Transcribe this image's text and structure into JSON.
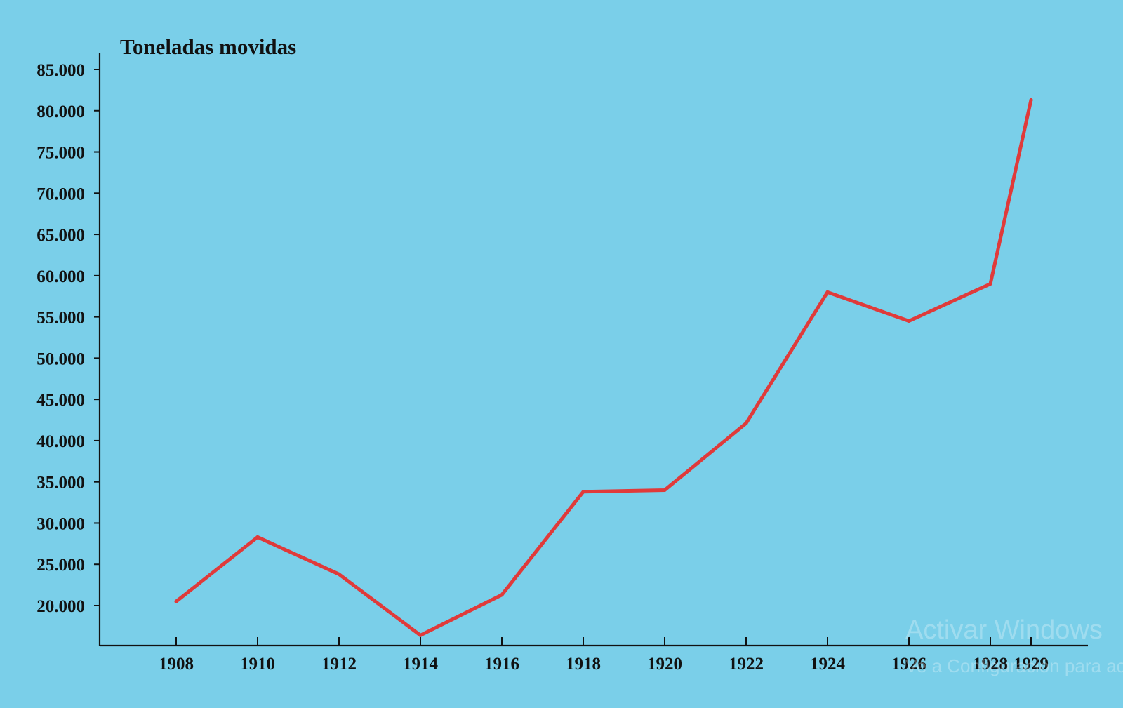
{
  "chart_data": {
    "type": "line",
    "title": "",
    "xlabel": "",
    "ylabel": "Toneladas movidas",
    "x": [
      "1908",
      "1910",
      "1912",
      "1914",
      "1916",
      "1918",
      "1920",
      "1922",
      "1924",
      "1926",
      "1928",
      "1929"
    ],
    "y_ticks": [
      20000,
      25000,
      30000,
      35000,
      40000,
      45000,
      50000,
      55000,
      60000,
      65000,
      70000,
      75000,
      80000,
      85000
    ],
    "y_tick_labels": [
      "20.000",
      "25.000",
      "30.000",
      "35.000",
      "40.000",
      "45.000",
      "50.000",
      "55.000",
      "60.000",
      "65.000",
      "70.000",
      "75.000",
      "80.000",
      "85.000"
    ],
    "ylim": [
      15000,
      87000
    ],
    "grid": false,
    "series": [
      {
        "values": [
          20500,
          28300,
          23800,
          16400,
          21300,
          33800,
          34000,
          42100,
          58000,
          54500,
          59000,
          81300
        ],
        "color": "#e03a3a"
      }
    ]
  },
  "watermark": {
    "title": "Activar Windows",
    "subtitle": "Ve a Configuración para activar Windows."
  },
  "colors": {
    "background": "#7acfe9",
    "axis": "#111111"
  }
}
